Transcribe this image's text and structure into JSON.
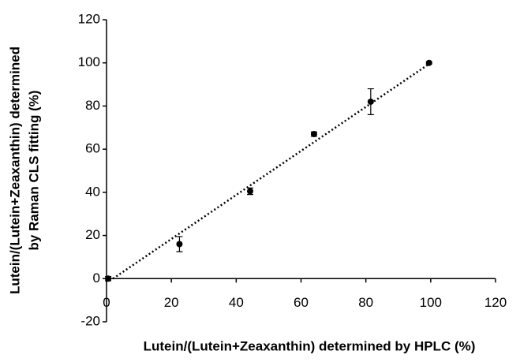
{
  "chart_data": {
    "type": "scatter",
    "xlabel": "Lutein/(Lutein+Zeaxanthin) determined by HPLC (%)",
    "ylabel": [
      "Lutein/(Lutein+Zeaxanthin) determined",
      "by Raman CLS fitting (%)"
    ],
    "x": [
      0.5,
      22.5,
      44.3,
      64,
      81.5,
      99.5
    ],
    "values": [
      0,
      16,
      40.5,
      67,
      82,
      100
    ],
    "errors": [
      1,
      3.5,
      1.5,
      1,
      6,
      0.5
    ],
    "color": "#000000",
    "trendline": {
      "x": [
        2,
        100
      ],
      "y": [
        0,
        100
      ]
    },
    "xlim": [
      0,
      120
    ],
    "xticks": [
      0,
      20,
      40,
      60,
      80,
      100,
      120
    ],
    "ylim": [
      -20,
      120
    ],
    "yticks": [
      -20,
      0,
      20,
      40,
      60,
      80,
      100,
      120
    ]
  }
}
